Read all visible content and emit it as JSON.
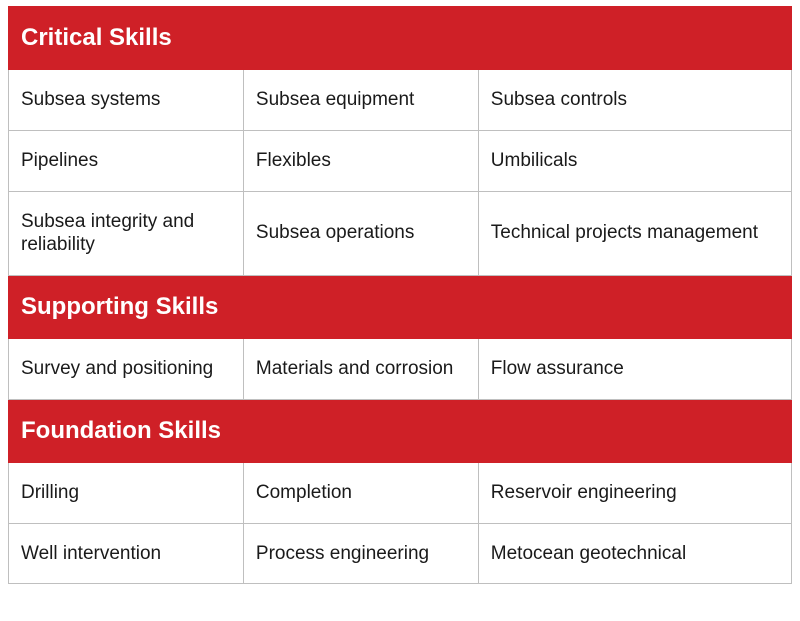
{
  "colors": {
    "header_bg": "#cf2027",
    "header_text": "#ffffff",
    "cell_bg": "#ffffff",
    "cell_text": "#1a1a1a",
    "border": "#bfbfbf"
  },
  "table": {
    "column_widths_pct": [
      30,
      30,
      40
    ],
    "sections": [
      {
        "title": "Critical Skills",
        "rows": [
          [
            "Subsea systems",
            "Subsea equipment",
            "Subsea controls"
          ],
          [
            "Pipelines",
            "Flexibles",
            "Umbilicals"
          ],
          [
            "Subsea integrity and reliability",
            "Subsea operations",
            "Technical projects management"
          ]
        ]
      },
      {
        "title": "Supporting Skills",
        "rows": [
          [
            "Survey and positioning",
            "Materials and corrosion",
            "Flow assurance"
          ]
        ]
      },
      {
        "title": "Foundation Skills",
        "rows": [
          [
            "Drilling",
            "Completion",
            "Reservoir engineering"
          ],
          [
            "Well intervention",
            "Process engineering",
            "Metocean geotechnical"
          ]
        ]
      }
    ]
  }
}
